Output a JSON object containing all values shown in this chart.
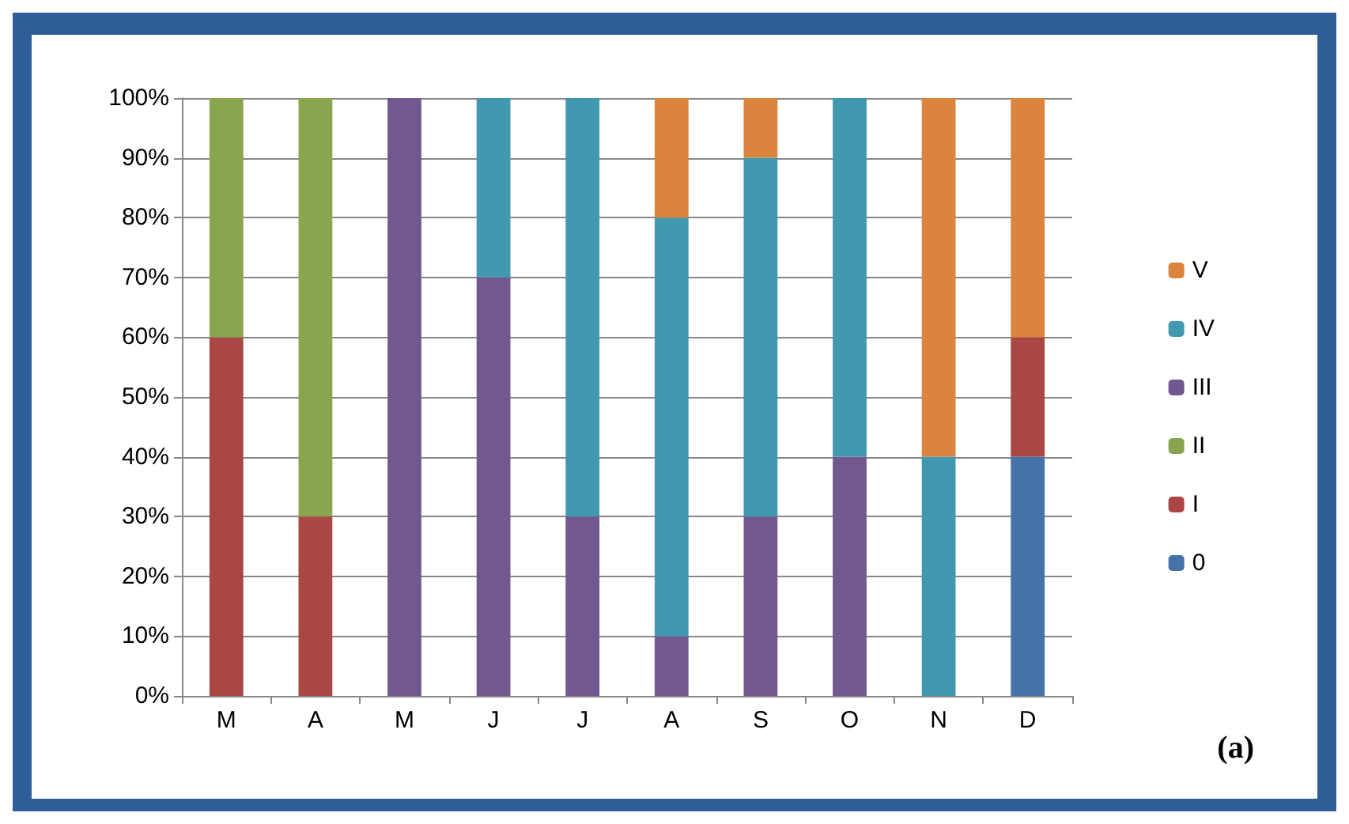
{
  "chart_data": {
    "type": "bar",
    "stacked": true,
    "categories": [
      "M",
      "A",
      "M",
      "J",
      "J",
      "A",
      "S",
      "O",
      "N",
      "D"
    ],
    "series": [
      {
        "name": "0",
        "color": "#4572a7",
        "values": [
          null,
          null,
          null,
          null,
          null,
          null,
          null,
          null,
          null,
          40
        ]
      },
      {
        "name": "I",
        "color": "#aa4643",
        "values": [
          60,
          30,
          null,
          null,
          null,
          null,
          null,
          null,
          null,
          20
        ]
      },
      {
        "name": "II",
        "color": "#89a54e",
        "values": [
          40,
          70,
          null,
          null,
          null,
          null,
          null,
          null,
          null,
          null
        ]
      },
      {
        "name": "III",
        "color": "#71588f",
        "values": [
          null,
          null,
          100,
          70,
          30,
          10,
          30,
          40,
          null,
          null
        ]
      },
      {
        "name": "IV",
        "color": "#4198af",
        "values": [
          null,
          null,
          null,
          30,
          70,
          70,
          60,
          60,
          40,
          null
        ]
      },
      {
        "name": "V",
        "color": "#db843d",
        "values": [
          null,
          null,
          null,
          null,
          null,
          20,
          10,
          null,
          60,
          40
        ]
      }
    ],
    "ylim": [
      0,
      100
    ],
    "yticks": [
      {
        "value": 0,
        "label": "0%"
      },
      {
        "value": 10,
        "label": "10%"
      },
      {
        "value": 20,
        "label": "20%"
      },
      {
        "value": 30,
        "label": "30%"
      },
      {
        "value": 40,
        "label": "40%"
      },
      {
        "value": 50,
        "label": "50%"
      },
      {
        "value": 60,
        "label": "60%"
      },
      {
        "value": 70,
        "label": "70%"
      },
      {
        "value": 80,
        "label": "80%"
      },
      {
        "value": 90,
        "label": "90%"
      },
      {
        "value": 100,
        "label": "100%"
      }
    ],
    "grid": "y",
    "legend": "right",
    "annotations": [
      "(a)"
    ]
  }
}
